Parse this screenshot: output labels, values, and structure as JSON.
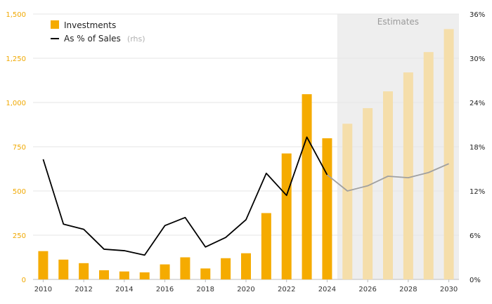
{
  "chart_data": {
    "type": "bar",
    "x": [
      2010,
      2011,
      2012,
      2013,
      2014,
      2015,
      2016,
      2017,
      2018,
      2019,
      2020,
      2021,
      2022,
      2023,
      2024,
      2025,
      2026,
      2027,
      2028,
      2029,
      2030
    ],
    "x_tick_labels": [
      "2010",
      "2012",
      "2014",
      "2016",
      "2018",
      "2020",
      "2022",
      "2024",
      "2026",
      "2028",
      "2030"
    ],
    "series": [
      {
        "name": "Investments",
        "type": "bar",
        "axis": "left",
        "color": "#f5ab00",
        "estimate_color": "#f5deaa",
        "values": [
          160,
          112,
          92,
          52,
          45,
          40,
          85,
          125,
          62,
          120,
          148,
          375,
          712,
          1047,
          798,
          880,
          968,
          1063,
          1170,
          1285,
          1415
        ]
      },
      {
        "name": "As % of Sales",
        "name_suffix": "(rhs)",
        "type": "line",
        "axis": "right",
        "color": "#000000",
        "estimate_color": "#a0a0a0",
        "values": [
          16.3,
          7.5,
          6.8,
          4.1,
          3.9,
          3.3,
          7.3,
          8.4,
          4.4,
          5.7,
          8.1,
          14.4,
          11.4,
          19.3,
          14.2,
          12.0,
          12.7,
          14.0,
          13.8,
          14.5,
          15.7
        ]
      }
    ],
    "estimates": {
      "label": "Estimates",
      "from_year": 2025,
      "to_year": 2030
    },
    "y_left": {
      "min": 0,
      "max": 1500,
      "ticks": [
        0,
        250,
        500,
        750,
        1000,
        1250,
        1500
      ],
      "tick_labels": [
        "0",
        "250",
        "500",
        "750",
        "1,000",
        "1,250",
        "1,500"
      ],
      "color": "#f0a800"
    },
    "y_right": {
      "min": 0,
      "max": 36,
      "ticks": [
        0,
        6,
        12,
        18,
        24,
        30,
        36
      ],
      "tick_labels": [
        "0%",
        "6%",
        "12%",
        "18%",
        "24%",
        "30%",
        "36%"
      ]
    },
    "legend_position": "top-left",
    "grid": true
  }
}
